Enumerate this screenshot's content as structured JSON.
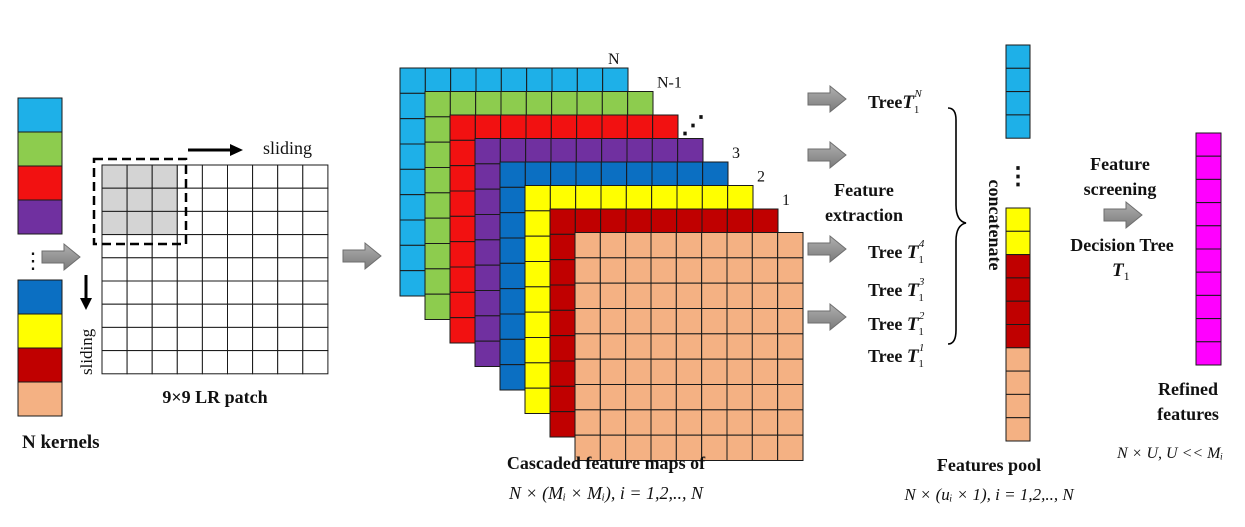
{
  "colors": {
    "cyan": "#1eb0e8",
    "green": "#8dcc4e",
    "red": "#f21111",
    "purple": "#7030a0",
    "blue": "#0b6fc2",
    "yellow": "#ffff00",
    "darkred": "#c00000",
    "peach": "#f4b183",
    "magenta": "#ff00ff",
    "patch_gray": "#d4d4d4",
    "arrow_gray": "#8c8c8c"
  },
  "kernels": {
    "label": "N kernels",
    "ellipsis": "⋮",
    "top_colors": [
      "cyan",
      "green",
      "red",
      "purple"
    ],
    "bottom_colors": [
      "blue",
      "yellow",
      "darkred",
      "peach"
    ]
  },
  "patch": {
    "label": "9×9 LR patch",
    "sliding_h": "sliding",
    "sliding_v": "sliding"
  },
  "cascade": {
    "caption": "Cascaded feature maps of",
    "formula": "N × (Mᵢ × Mᵢ), i = 1,2,.., N",
    "layer_colors": [
      "cyan",
      "green",
      "red",
      "purple",
      "blue",
      "yellow",
      "darkred",
      "peach"
    ],
    "layer_labels": [
      "N",
      "N-1",
      "",
      "",
      "3",
      "2",
      "1",
      ""
    ],
    "dots": "⋰"
  },
  "trees": {
    "extraction_label_1": "Feature",
    "extraction_label_2": "extraction",
    "items": [
      {
        "prefix": "Tree",
        "var": "T",
        "sub": "1",
        "sup": "N"
      },
      {
        "prefix": "Tree ",
        "var": "T",
        "sub": "1",
        "sup": "4"
      },
      {
        "prefix": "Tree ",
        "var": "T",
        "sub": "1",
        "sup": "3"
      },
      {
        "prefix": "Tree ",
        "var": "T",
        "sub": "1",
        "sup": "2"
      },
      {
        "prefix": "Tree ",
        "var": "T",
        "sub": "1",
        "sup": "1"
      }
    ],
    "concatenate": "concatenate"
  },
  "pool": {
    "label": "Features pool",
    "formula": "N × (uᵢ × 1), i = 1,2,.., N",
    "dots": "⋮"
  },
  "screening": {
    "line1": "Feature",
    "line2": "screening",
    "line3": "Decision Tree",
    "var": "T",
    "sub": "1"
  },
  "refined": {
    "line1": "Refined",
    "line2": "features",
    "formula": "N × U, U << Mᵢ"
  }
}
